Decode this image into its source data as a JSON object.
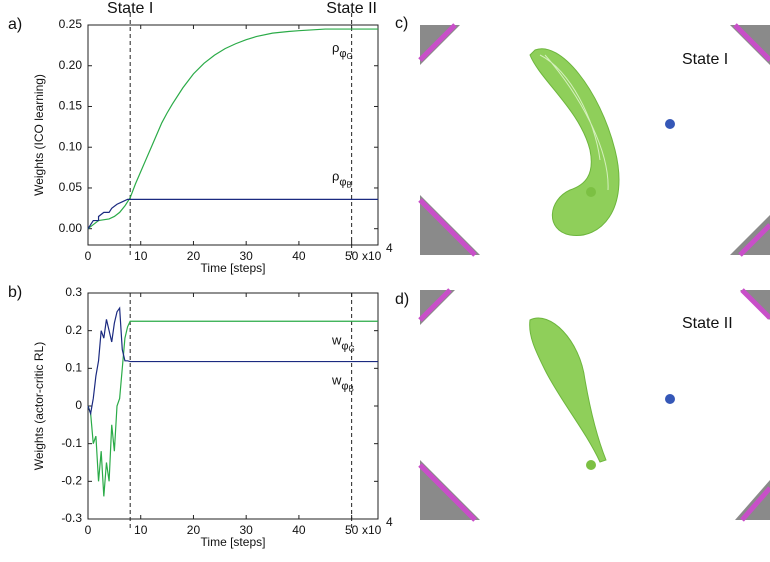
{
  "chart_data": [
    {
      "type": "line",
      "panel_label": "a)",
      "xlabel": "Time [steps]",
      "ylabel": "Weights (ICO learning)",
      "x_scale_label": "x10",
      "x_scale_exponent": "4",
      "xlim": [
        0,
        55
      ],
      "ylim": [
        -0.02,
        0.25
      ],
      "xticks": [
        0,
        10,
        20,
        30,
        40,
        50
      ],
      "yticks": [
        {
          "value": 0,
          "label": "0.00"
        },
        {
          "value": 0.05,
          "label": "0.05"
        },
        {
          "value": 0.1,
          "label": "0.10"
        },
        {
          "value": 0.15,
          "label": "0.15"
        },
        {
          "value": 0.2,
          "label": "0.20"
        },
        {
          "value": 0.25,
          "label": "0.25"
        }
      ],
      "markers": [
        {
          "x": 8,
          "label": "State I"
        },
        {
          "x": 50,
          "label": "State II"
        }
      ],
      "series": [
        {
          "name_parts": [
            "ρ",
            "φ",
            "G"
          ],
          "color": "#2bab48",
          "x": [
            0,
            2,
            4,
            5,
            6,
            7,
            8,
            9,
            10,
            11,
            12,
            13,
            14,
            15,
            16,
            18,
            20,
            22,
            24,
            26,
            28,
            30,
            32,
            35,
            38,
            40,
            45,
            50,
            55
          ],
          "values": [
            0,
            0.01,
            0.012,
            0.015,
            0.02,
            0.028,
            0.038,
            0.055,
            0.07,
            0.085,
            0.1,
            0.115,
            0.13,
            0.142,
            0.153,
            0.173,
            0.19,
            0.203,
            0.213,
            0.221,
            0.227,
            0.232,
            0.236,
            0.24,
            0.242,
            0.243,
            0.245,
            0.245,
            0.245
          ]
        },
        {
          "name_parts": [
            "ρ",
            "φ",
            "B"
          ],
          "color": "#1b2a80",
          "x": [
            0,
            1,
            2,
            2,
            3,
            4,
            4.5,
            5.5,
            6.5,
            7.5,
            55
          ],
          "values": [
            0,
            0.01,
            0.01,
            0.015,
            0.02,
            0.02,
            0.025,
            0.03,
            0.033,
            0.036,
            0.036
          ]
        }
      ]
    },
    {
      "type": "line",
      "panel_label": "b)",
      "xlabel": "Time [steps]",
      "ylabel": "Weights (actor-critic RL)",
      "x_scale_label": "x10",
      "x_scale_exponent": "4",
      "xlim": [
        0,
        55
      ],
      "ylim": [
        -0.3,
        0.3
      ],
      "xticks": [
        0,
        10,
        20,
        30,
        40,
        50
      ],
      "yticks": [
        -0.3,
        -0.2,
        -0.1,
        0,
        0.1,
        0.2,
        0.3
      ],
      "markers": [
        {
          "x": 8
        },
        {
          "x": 50
        }
      ],
      "series": [
        {
          "name_parts": [
            "w",
            "φ",
            "G"
          ],
          "color": "#2bab48",
          "x": [
            0,
            0.5,
            1,
            1.5,
            2,
            2.5,
            3,
            3.5,
            4,
            4.5,
            5,
            5.5,
            6,
            6.5,
            7,
            7.5,
            8,
            55
          ],
          "values": [
            0,
            -0.02,
            -0.1,
            -0.08,
            -0.2,
            -0.12,
            -0.24,
            -0.15,
            -0.2,
            -0.05,
            -0.12,
            0,
            0.02,
            0.1,
            0.18,
            0.21,
            0.225,
            0.225
          ]
        },
        {
          "name_parts": [
            "w",
            "φ",
            "B"
          ],
          "color": "#1b2a80",
          "x": [
            0,
            0.5,
            1,
            1.5,
            2,
            2.5,
            3,
            3.5,
            4,
            4.5,
            5,
            5.5,
            6,
            6.5,
            7,
            7.5,
            8,
            55
          ],
          "values": [
            0,
            -0.02,
            0.02,
            0.08,
            0.12,
            0.2,
            0.18,
            0.23,
            0.2,
            0.17,
            0.22,
            0.25,
            0.26,
            0.15,
            0.12,
            0.12,
            0.118,
            0.118
          ]
        }
      ]
    }
  ],
  "panels": [
    {
      "label": "c)",
      "title": "State I"
    },
    {
      "label": "d)",
      "title": "State II"
    }
  ]
}
